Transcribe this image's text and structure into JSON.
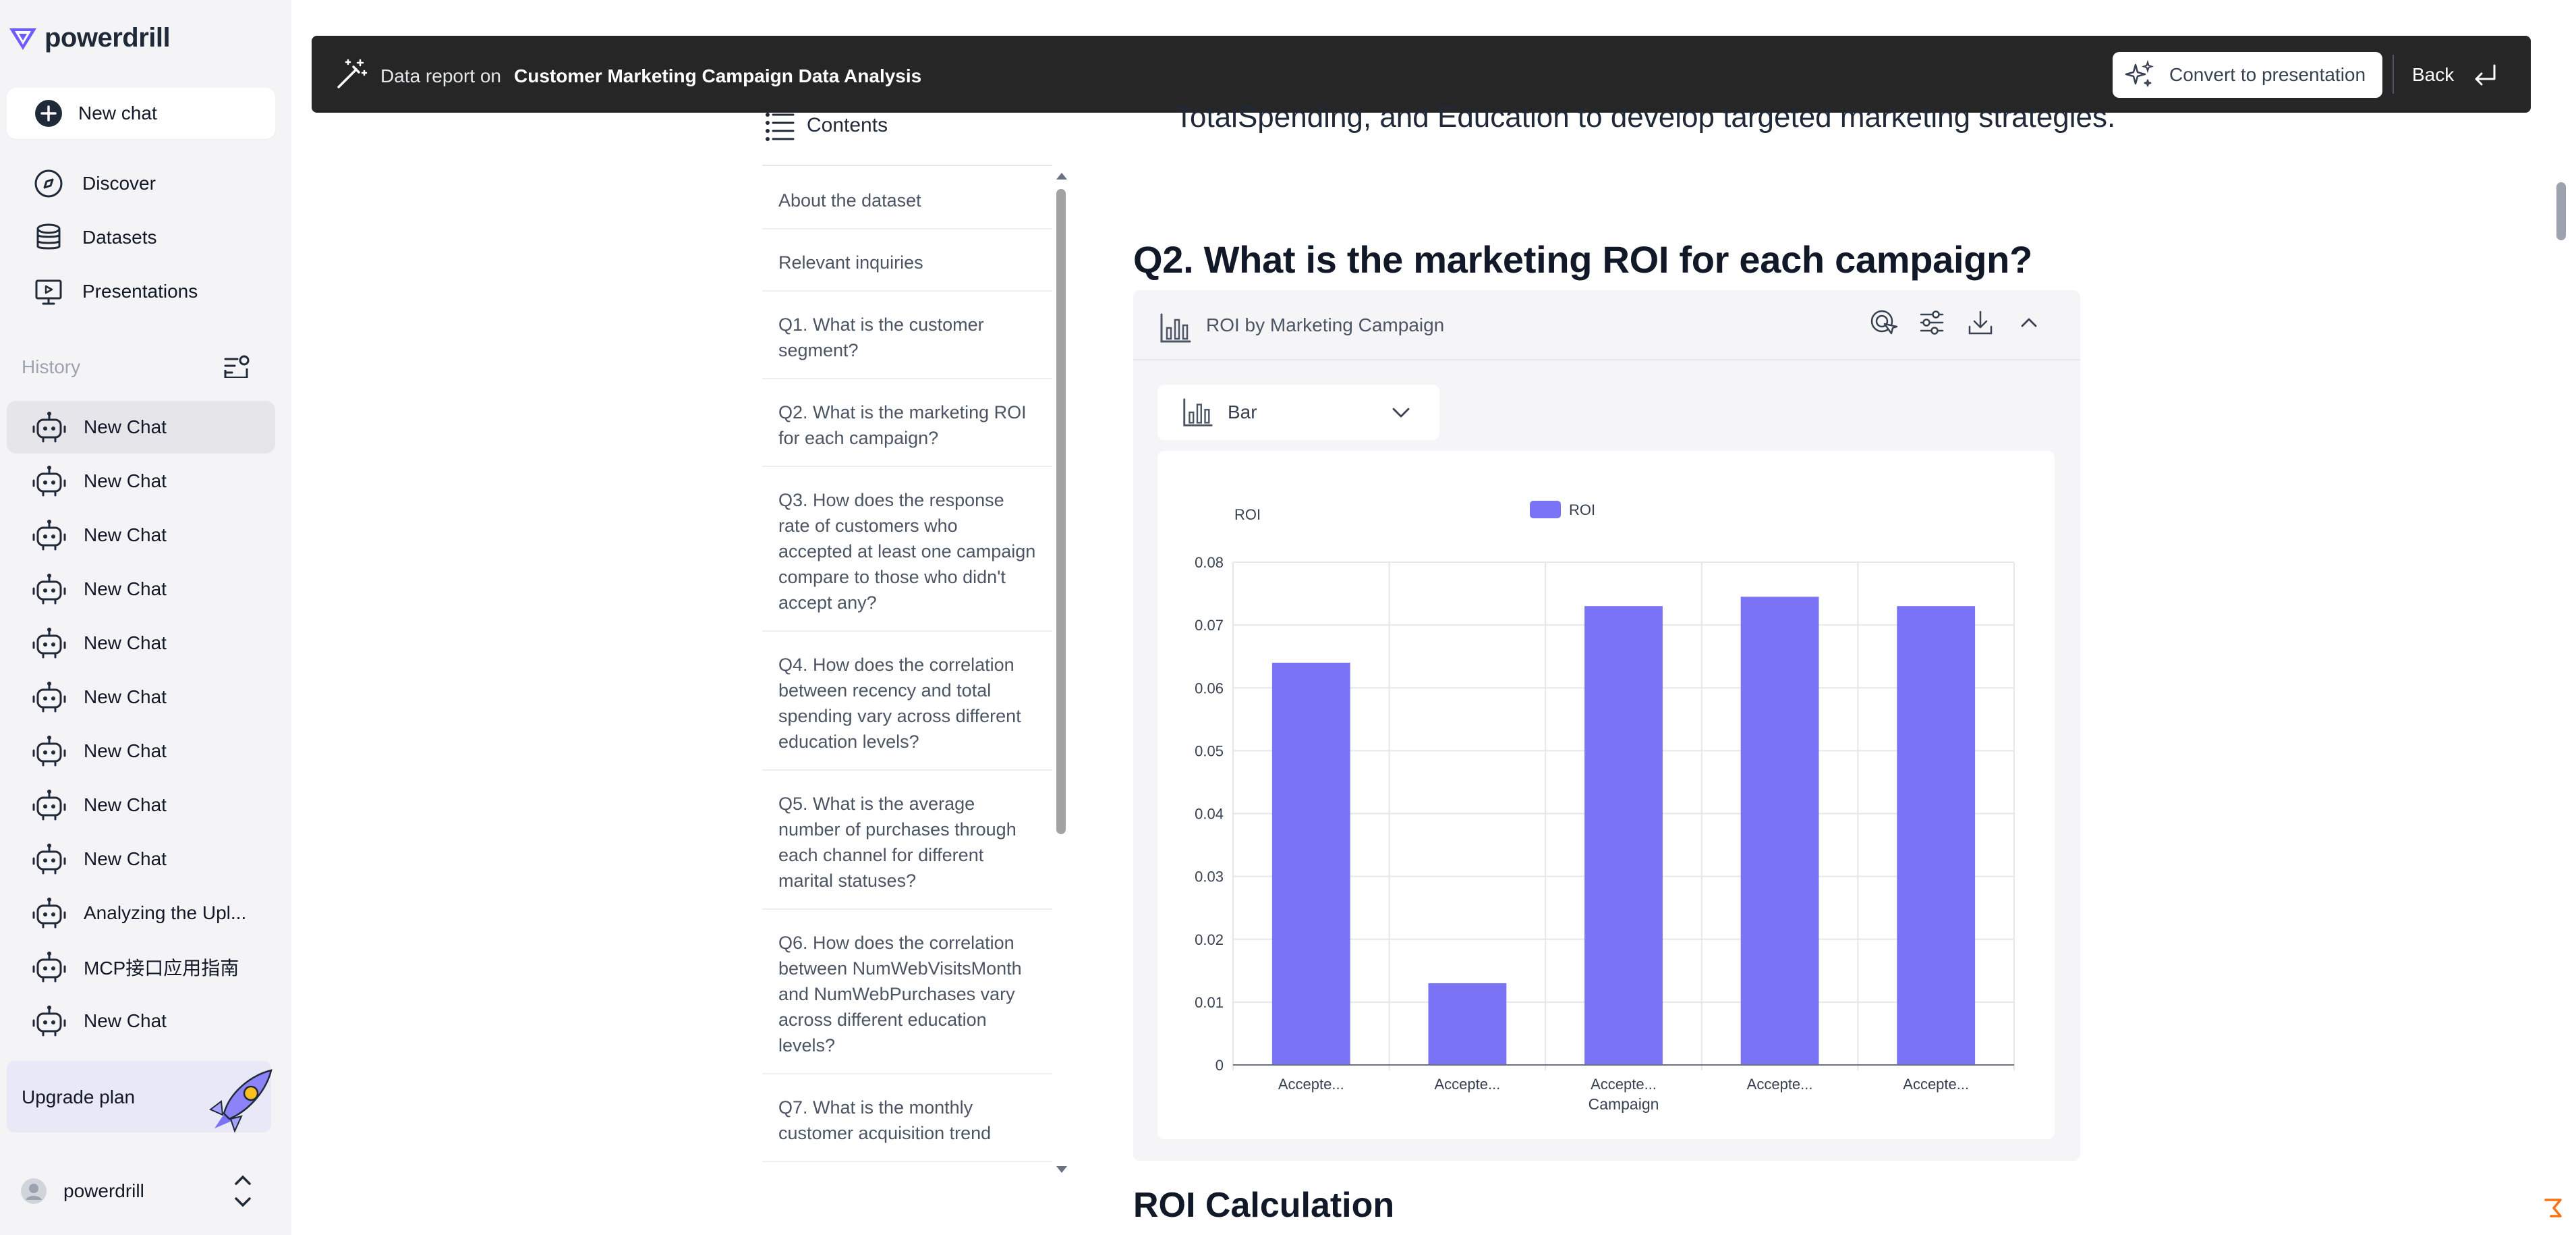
{
  "app": {
    "name": "powerdrill"
  },
  "sidebar": {
    "new_chat": "New chat",
    "nav": [
      {
        "label": "Discover",
        "icon": "compass-icon"
      },
      {
        "label": "Datasets",
        "icon": "database-icon"
      },
      {
        "label": "Presentations",
        "icon": "presentation-icon"
      }
    ],
    "history_label": "History",
    "history": [
      "New Chat",
      "New Chat",
      "New Chat",
      "New Chat",
      "New Chat",
      "New Chat",
      "New Chat",
      "New Chat",
      "New Chat",
      "Analyzing the Upl...",
      "MCP接口应用指南",
      "New Chat"
    ],
    "upgrade_label": "Upgrade plan",
    "user_name": "powerdrill"
  },
  "topbar": {
    "label": "Data report on",
    "title": "Customer Marketing Campaign Data Analysis",
    "convert": "Convert to presentation",
    "back": "Back"
  },
  "toc": {
    "title": "Contents",
    "items": [
      "About the dataset",
      "Relevant inquiries",
      "Q1. What is the customer segment?",
      "Q2. What is the marketing ROI for each campaign?",
      "Q3. How does the response rate of customers who accepted at least one campaign compare to those who didn't accept any?",
      "Q4. How does the correlation between recency and total spending vary across different education levels?",
      "Q5. What is the average number of purchases through each channel for different marital statuses?",
      "Q6. How does the correlation between NumWebVisitsMonth and NumWebPurchases vary across different education levels?",
      "Q7. What is the monthly customer acquisition trend"
    ]
  },
  "report": {
    "intro": "TotalSpending, and Education to develop targeted marketing strategies.",
    "q2_heading": "Q2. What is the marketing ROI for each campaign?",
    "card_title": "ROI by Marketing Campaign",
    "chart_type_label": "Bar",
    "next_heading": "ROI Calculation"
  },
  "colors": {
    "bar": "#7b73f5",
    "topbar": "#262626",
    "sidebar": "#f4f4f6"
  },
  "chart_data": {
    "type": "bar",
    "categories": [
      "Accepte...",
      "Accepte...",
      "Accepte...",
      "Accepte...",
      "Accepte..."
    ],
    "series": [
      {
        "name": "ROI",
        "values": [
          0.064,
          0.013,
          0.073,
          0.0745,
          0.073
        ]
      }
    ],
    "xlabel": "Campaign",
    "ylabel": "ROI",
    "ylim": [
      0,
      0.08
    ],
    "yticks": [
      "0",
      "0.01",
      "0.02",
      "0.03",
      "0.04",
      "0.05",
      "0.06",
      "0.07",
      "0.08"
    ],
    "legend": "top-center",
    "grid": true
  }
}
